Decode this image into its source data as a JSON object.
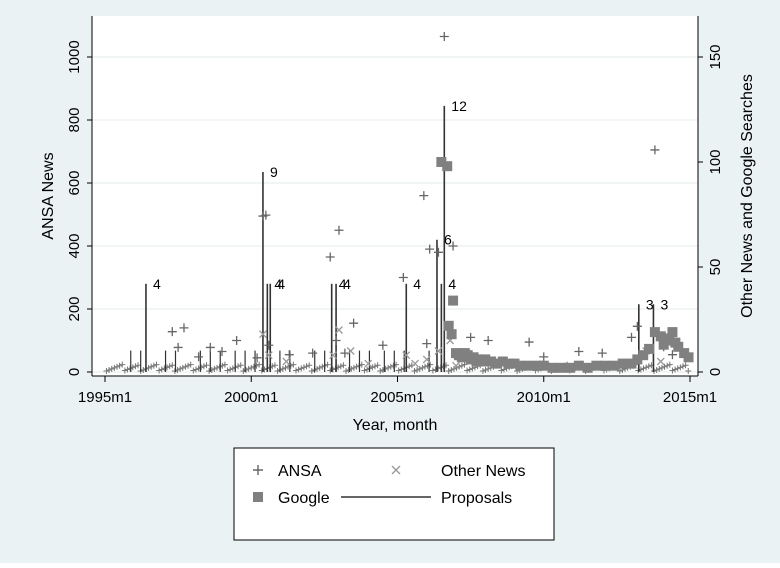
{
  "chart_data": {
    "type": "scatter",
    "title": "",
    "xlabel": "Year, month",
    "ylabel_left": "ANSA News",
    "ylabel_right": "Other News and Google Searches",
    "xlim": [
      1995.0,
      2015.0
    ],
    "ylim_left": [
      0,
      1100
    ],
    "ylim_right": [
      0,
      155
    ],
    "x_ticks": [
      1995,
      2000,
      2005,
      2010,
      2015
    ],
    "x_tick_labels": [
      "1995m1",
      "2000m1",
      "2005m1",
      "2010m1",
      "2015m1"
    ],
    "y_left_ticks": [
      "0",
      "200",
      "400",
      "600",
      "800",
      "1000"
    ],
    "y_right_ticks": [
      "0",
      "50",
      "100",
      "150"
    ],
    "grid": "horizontal",
    "legend_position": "bottom",
    "legend": [
      {
        "name": "ANSA",
        "marker": "plus"
      },
      {
        "name": "Other News",
        "marker": "x"
      },
      {
        "name": "Google",
        "marker": "square"
      },
      {
        "name": "Proposals",
        "marker": "line"
      }
    ],
    "series": [
      {
        "name": "ANSA",
        "axis": "left",
        "marker": "plus",
        "color": "#666666",
        "points": [
          [
            1997.3,
            128
          ],
          [
            1997.7,
            140
          ],
          [
            1997.5,
            78
          ],
          [
            1998.2,
            48
          ],
          [
            1998.6,
            78
          ],
          [
            1999.0,
            65
          ],
          [
            1999.5,
            100
          ],
          [
            2000.2,
            45
          ],
          [
            2000.4,
            495
          ],
          [
            2000.5,
            498
          ],
          [
            2000.6,
            85
          ],
          [
            2001.3,
            55
          ],
          [
            2002.1,
            60
          ],
          [
            2002.7,
            365
          ],
          [
            2002.9,
            100
          ],
          [
            2003.0,
            450
          ],
          [
            2003.2,
            60
          ],
          [
            2003.5,
            155
          ],
          [
            2004.5,
            85
          ],
          [
            2005.2,
            300
          ],
          [
            2005.9,
            560
          ],
          [
            2006.0,
            90
          ],
          [
            2006.1,
            390
          ],
          [
            2006.4,
            380
          ],
          [
            2006.6,
            1065
          ],
          [
            2006.9,
            400
          ],
          [
            2007.5,
            110
          ],
          [
            2008.1,
            100
          ],
          [
            2009.5,
            95
          ],
          [
            2010.0,
            48
          ],
          [
            2011.2,
            65
          ],
          [
            2012.0,
            60
          ],
          [
            2013.0,
            110
          ],
          [
            2013.2,
            145
          ],
          [
            2013.8,
            705
          ],
          [
            2014.1,
            80
          ],
          [
            2014.4,
            55
          ]
        ]
      },
      {
        "name": "Other News",
        "axis": "right",
        "marker": "x",
        "color": "#999999",
        "points": [
          [
            2000.4,
            18
          ],
          [
            2000.6,
            8
          ],
          [
            2001.2,
            5
          ],
          [
            2002.8,
            8
          ],
          [
            2003.0,
            20
          ],
          [
            2003.4,
            10
          ],
          [
            2004.0,
            4
          ],
          [
            2005.3,
            8
          ],
          [
            2005.6,
            4
          ],
          [
            2006.0,
            6
          ],
          [
            2006.4,
            10
          ],
          [
            2006.8,
            15
          ],
          [
            2007.0,
            3
          ],
          [
            2013.5,
            10
          ],
          [
            2014.0,
            5
          ]
        ]
      },
      {
        "name": "Google",
        "axis": "right",
        "marker": "square",
        "color": "#808080",
        "points": [
          [
            2006.5,
            100
          ],
          [
            2006.7,
            98
          ],
          [
            2006.9,
            34
          ],
          [
            2006.75,
            22
          ],
          [
            2006.85,
            18
          ],
          [
            2007.0,
            9
          ],
          [
            2007.1,
            8
          ],
          [
            2007.2,
            7
          ],
          [
            2007.3,
            9
          ],
          [
            2007.4,
            8
          ],
          [
            2007.5,
            6
          ],
          [
            2007.6,
            7
          ],
          [
            2007.7,
            5
          ],
          [
            2007.8,
            6
          ],
          [
            2007.9,
            5
          ],
          [
            2008.0,
            6
          ],
          [
            2008.2,
            5
          ],
          [
            2008.4,
            4
          ],
          [
            2008.6,
            5
          ],
          [
            2008.8,
            4
          ],
          [
            2009.0,
            4
          ],
          [
            2009.2,
            3
          ],
          [
            2009.5,
            3
          ],
          [
            2009.8,
            3
          ],
          [
            2010.0,
            3
          ],
          [
            2010.3,
            2
          ],
          [
            2010.6,
            2
          ],
          [
            2010.9,
            2
          ],
          [
            2011.2,
            3
          ],
          [
            2011.5,
            2
          ],
          [
            2011.8,
            3
          ],
          [
            2012.1,
            3
          ],
          [
            2012.4,
            3
          ],
          [
            2012.7,
            4
          ],
          [
            2013.0,
            4
          ],
          [
            2013.2,
            6
          ],
          [
            2013.4,
            8
          ],
          [
            2013.6,
            11
          ],
          [
            2013.8,
            19
          ],
          [
            2014.0,
            17
          ],
          [
            2014.1,
            13
          ],
          [
            2014.2,
            15
          ],
          [
            2014.3,
            16
          ],
          [
            2014.4,
            19
          ],
          [
            2014.5,
            14
          ],
          [
            2014.6,
            12
          ],
          [
            2014.8,
            9
          ],
          [
            2014.95,
            7
          ]
        ]
      },
      {
        "name": "Proposals",
        "axis": "left",
        "marker": "line",
        "color": "#333333",
        "values": [
          [
            1996.4,
            280,
            "4"
          ],
          [
            2000.4,
            635,
            "9"
          ],
          [
            2000.55,
            280,
            "4"
          ],
          [
            2000.65,
            280,
            "4"
          ],
          [
            2002.75,
            280,
            "4"
          ],
          [
            2002.9,
            280,
            "4"
          ],
          [
            2005.3,
            280,
            "4"
          ],
          [
            2006.35,
            420,
            "6"
          ],
          [
            2006.5,
            280,
            "4"
          ],
          [
            2006.6,
            845,
            "12"
          ],
          [
            2013.25,
            215,
            "3"
          ],
          [
            2013.75,
            215,
            "3"
          ]
        ]
      }
    ]
  }
}
